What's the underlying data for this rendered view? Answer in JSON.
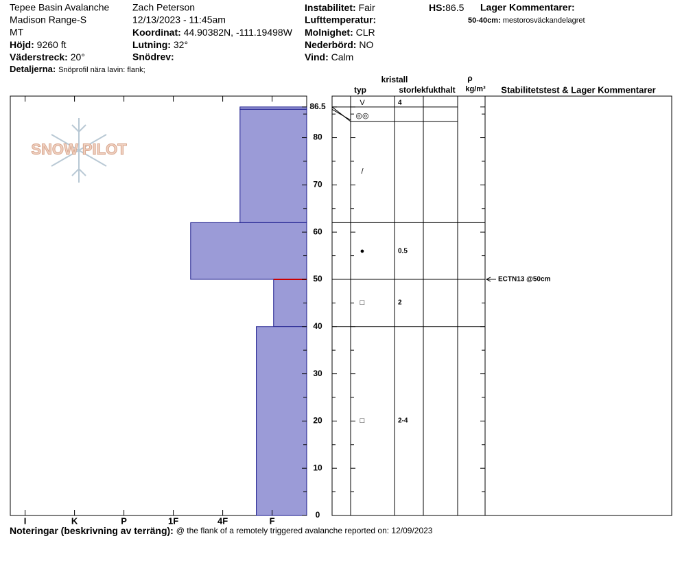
{
  "header": {
    "site": "Tepee Basin Avalanche",
    "range": "Madison Range-S",
    "state": "MT",
    "elevation_label": "Höjd:",
    "elevation": "9260 ft",
    "aspect_label": "Väderstreck:",
    "aspect": "20°",
    "details_label": "Detaljerna:",
    "details": "Snöprofil nära lavin: flank;",
    "observer": "Zach Peterson",
    "datetime": "12/13/2023 - 11:45am",
    "coord_label": "Koordinat:",
    "coord": "44.90382N, -111.19498W",
    "slope_label": "Lutning:",
    "slope": "32°",
    "drift_label": "Snödrev:",
    "stability_label": "Instabilitet:",
    "stability": "Fair",
    "airtemp_label": "Lufttemperatur:",
    "sky_label": "Molnighet:",
    "sky": "CLR",
    "precip_label": "Nederbörd:",
    "precip": "NO",
    "wind_label": "Vind:",
    "wind": "Calm",
    "hs_label": "HS:",
    "hs": 86.5,
    "layer_comments_label": "Lager Kommentarer:",
    "layer_comment_range": "50-40cm:",
    "layer_comment": "mestorosväckandelagret"
  },
  "logo": "SNOW PILOT",
  "chart_data": {
    "type": "snow-profile",
    "xlim": [
      6.3,
      0.3
    ],
    "xticks": [
      {
        "value": 6,
        "label": "I"
      },
      {
        "value": 5,
        "label": "K"
      },
      {
        "value": 4,
        "label": "P"
      },
      {
        "value": 3,
        "label": "1F"
      },
      {
        "value": 2,
        "label": "4F"
      },
      {
        "value": 1,
        "label": "F"
      }
    ],
    "ylim": [
      0,
      88.8
    ],
    "yticks": [
      0,
      10,
      20,
      30,
      40,
      50,
      60,
      70,
      80,
      86.5
    ],
    "yminorticks": [
      5,
      15,
      25,
      35,
      45,
      55,
      65,
      75,
      85
    ],
    "color": "#9b9bd7",
    "layers": [
      {
        "top": 86.5,
        "bottom": 86,
        "hardness": 1.65
      },
      {
        "top": 86,
        "bottom": 62,
        "hardness": 1.65
      },
      {
        "top": 62,
        "bottom": 50,
        "hardness": 2.65
      },
      {
        "top": 50,
        "bottom": 40,
        "hardness": 0.97
      },
      {
        "top": 40,
        "bottom": 0,
        "hardness": 1.32
      }
    ],
    "failure_depth": 50,
    "columns": {
      "crystal": "kristall",
      "type": "typ",
      "size": "storlek",
      "moisture": "fukthalt",
      "density": "ρ",
      "density_unit": "kg/m³",
      "comments": "Stabilitetstest & Lager Kommentarer"
    },
    "crystals": [
      {
        "symbol": "V",
        "size": 4
      },
      {
        "symbol": "◎◎"
      },
      {
        "symbol": "/"
      },
      {
        "symbol": "●",
        "size": 0.5
      },
      {
        "symbol": "□",
        "size": 2
      },
      {
        "symbol": "□",
        "size": "2-4"
      }
    ],
    "tests": [
      {
        "label": "ECTN13 @50cm",
        "depth": 50
      }
    ]
  },
  "footer": {
    "notes_label": "Noteringar (beskrivning av terräng):",
    "notes": "@ the flank of a remotely triggered avalanche reported on: 12/09/2023"
  }
}
